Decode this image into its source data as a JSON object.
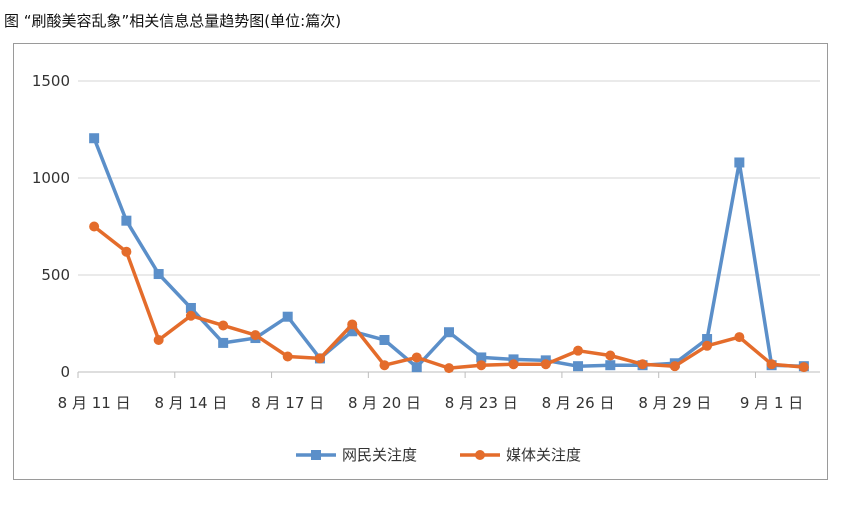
{
  "figure": {
    "title": "图   “刷酸美容乱象”相关信息总量趋势图(单位:篇次)"
  },
  "chart_data": {
    "type": "line",
    "title": "“刷酸美容乱象”相关信息总量趋势图",
    "unit": "单位:篇次",
    "ylim": [
      0,
      1500
    ],
    "yticks": [
      0,
      500,
      1000,
      1500
    ],
    "grid": true,
    "legend_position": "bottom",
    "categories": [
      "8月11日",
      "8月12日",
      "8月13日",
      "8月14日",
      "8月15日",
      "8月16日",
      "8月17日",
      "8月18日",
      "8月19日",
      "8月20日",
      "8月21日",
      "8月22日",
      "8月23日",
      "8月24日",
      "8月25日",
      "8月26日",
      "8月27日",
      "8月28日",
      "8月29日",
      "8月30日",
      "8月31日",
      "9月1日",
      "9月2日"
    ],
    "xtick_labels": [
      "8 月 11 日",
      "8 月 14 日",
      "8 月 17 日",
      "8 月 20 日",
      "8 月 23 日",
      "8 月 26 日",
      "8 月 29 日",
      "9 月 1 日"
    ],
    "xtick_index": [
      0,
      3,
      6,
      9,
      12,
      15,
      18,
      21
    ],
    "series": [
      {
        "name": "网民关注度",
        "color": "#5b8fc9",
        "marker": "square",
        "values": [
          1205,
          780,
          505,
          330,
          150,
          175,
          285,
          70,
          210,
          165,
          25,
          205,
          75,
          65,
          60,
          30,
          35,
          35,
          45,
          170,
          1080,
          35,
          30
        ]
      },
      {
        "name": "媒体关注度",
        "color": "#e46c2b",
        "marker": "circle",
        "values": [
          750,
          620,
          165,
          290,
          240,
          190,
          80,
          70,
          245,
          35,
          75,
          20,
          35,
          40,
          40,
          110,
          85,
          40,
          30,
          135,
          180,
          40,
          25
        ]
      }
    ]
  }
}
